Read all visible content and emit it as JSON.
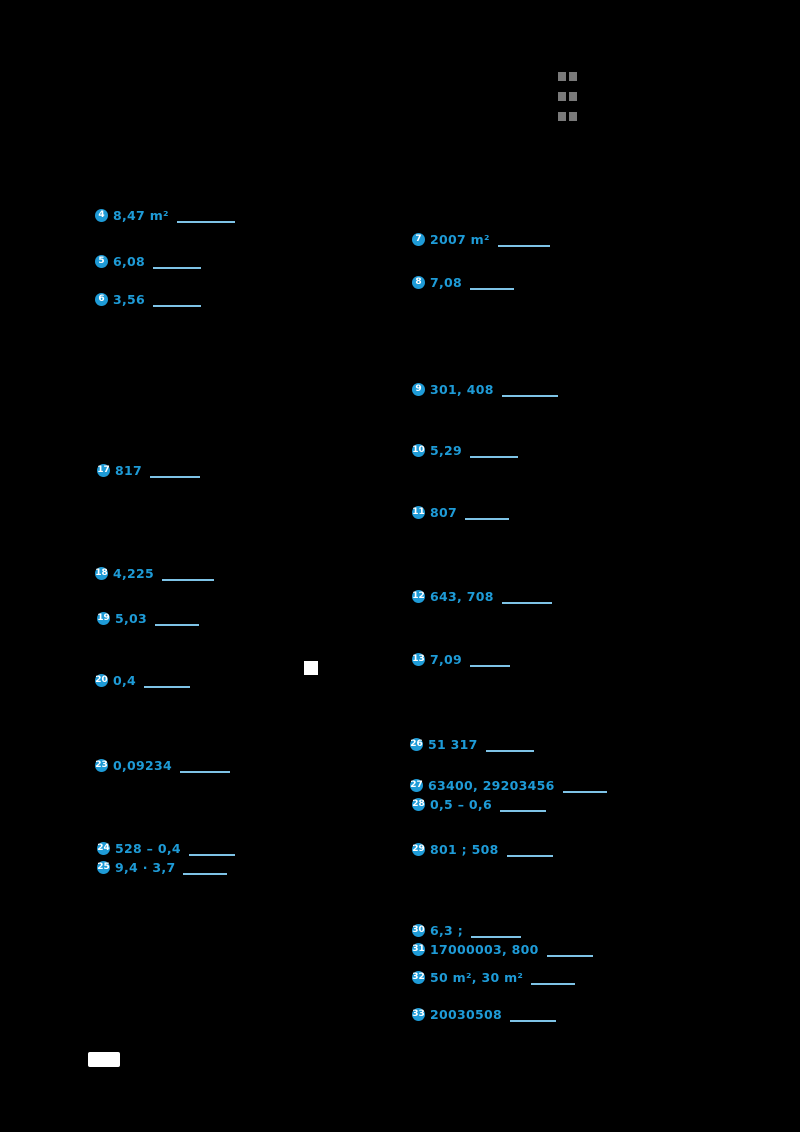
{
  "page": {
    "background_color": "#000000",
    "accent_blue": "#1E9BD7",
    "answer_line_blue": "#7EC3E6",
    "marker": "white-square",
    "page_number_box": ""
  },
  "left_items": [
    {
      "num": "4",
      "expr": "8,47 m²"
    },
    {
      "num": "5",
      "expr": "6,08"
    },
    {
      "num": "6",
      "expr": "3,56"
    },
    {
      "num": "17",
      "expr": "817"
    },
    {
      "num": "18",
      "expr": "4,225"
    },
    {
      "num": "19",
      "expr": "5,03"
    },
    {
      "num": "20",
      "expr": "0,4"
    },
    {
      "num": "23",
      "expr": "0,09234"
    },
    {
      "num": "24",
      "expr": "528 – 0,4"
    },
    {
      "num": "25",
      "expr": "9,4 · 3,7"
    }
  ],
  "right_items": [
    {
      "num": "7",
      "expr": "2007 m²"
    },
    {
      "num": "8",
      "expr": "7,08"
    },
    {
      "num": "9",
      "expr": "301, 408"
    },
    {
      "num": "10",
      "expr": "5,29"
    },
    {
      "num": "11",
      "expr": "807"
    },
    {
      "num": "12",
      "expr": "643, 708"
    },
    {
      "num": "13",
      "expr": "7,09"
    },
    {
      "num": "26",
      "expr": "51 317"
    },
    {
      "num": "27",
      "expr": "63400, 29203456"
    },
    {
      "num": "28",
      "expr": "0,5 – 0,6"
    },
    {
      "num": "29",
      "expr": "801 ; 508"
    },
    {
      "num": "30",
      "expr": "6,3 ;"
    },
    {
      "num": "31",
      "expr": "17000003, 800"
    },
    {
      "num": "32",
      "expr": "50 m², 30 m²"
    },
    {
      "num": "33",
      "expr": "20030508"
    }
  ]
}
